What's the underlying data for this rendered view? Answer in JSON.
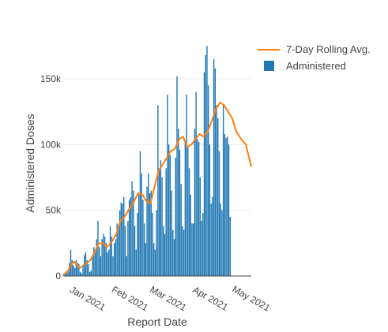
{
  "chart_data": {
    "type": "bar",
    "title": "",
    "xlabel": "Report Date",
    "ylabel": "Administered Doses",
    "x_start": "2020-12-14",
    "x_end": "2021-05-01",
    "ylim": [
      0,
      180000
    ],
    "y_ticks": [
      {
        "value": 0,
        "label": "0"
      },
      {
        "value": 50000,
        "label": "50k"
      },
      {
        "value": 100000,
        "label": "100k"
      },
      {
        "value": 150000,
        "label": "150k"
      }
    ],
    "x_ticks": [
      {
        "date": "2021-01-01",
        "label": "Jan 2021"
      },
      {
        "date": "2021-02-01",
        "label": "Feb 2021"
      },
      {
        "date": "2021-03-01",
        "label": "Mar 2021"
      },
      {
        "date": "2021-04-01",
        "label": "Apr 2021"
      },
      {
        "date": "2021-05-01",
        "label": "May 2021"
      }
    ],
    "grid": true,
    "legend_position": "top-right",
    "series": [
      {
        "name": "Administered",
        "kind": "bar",
        "color": "#1f77b4",
        "start_date": "2020-12-14",
        "values": [
          1500,
          2000,
          4000,
          3000,
          10000,
          20000,
          12000,
          8000,
          6000,
          12000,
          10000,
          9000,
          3000,
          2000,
          8000,
          16000,
          18000,
          12000,
          9000,
          3000,
          4000,
          14000,
          22000,
          18000,
          28000,
          42000,
          22000,
          15000,
          28000,
          32000,
          30000,
          25000,
          18000,
          20000,
          38000,
          30000,
          15000,
          25000,
          28000,
          40000,
          36000,
          50000,
          56000,
          55000,
          60000,
          38000,
          15000,
          42000,
          58000,
          60000,
          72000,
          65000,
          38000,
          20000,
          48000,
          62000,
          95000,
          78000,
          58000,
          40000,
          25000,
          68000,
          78000,
          63000,
          65000,
          48000,
          25000,
          20000,
          50000,
          130000,
          82000,
          88000,
          75000,
          38000,
          32000,
          82000,
          138000,
          100000,
          92000,
          65000,
          35000,
          28000,
          90000,
          152000,
          112000,
          96000,
          70000,
          38000,
          35000,
          102000,
          138000,
          98000,
          82000,
          62000,
          40000,
          40000,
          112000,
          140000,
          104000,
          102000,
          75000,
          42000,
          48000,
          155000,
          168000,
          175000,
          145000,
          100000,
          55000,
          60000,
          165000,
          158000,
          130000,
          120000,
          95000,
          55000,
          50000,
          130000,
          108000,
          105000,
          106000,
          100000,
          45000
        ],
        "description_of_scale": "daily doses"
      },
      {
        "name": "7-Day Rolling Avg.",
        "kind": "line",
        "color": "#ff7f0e",
        "points": [
          [
            "2020-12-14",
            1000
          ],
          [
            "2020-12-17",
            3000
          ],
          [
            "2020-12-20",
            9000
          ],
          [
            "2020-12-22",
            11000
          ],
          [
            "2020-12-26",
            6000
          ],
          [
            "2020-12-30",
            9000
          ],
          [
            "2021-01-03",
            12000
          ],
          [
            "2021-01-06",
            18000
          ],
          [
            "2021-01-09",
            25000
          ],
          [
            "2021-01-12",
            25000
          ],
          [
            "2021-01-15",
            22000
          ],
          [
            "2021-01-18",
            25000
          ],
          [
            "2021-01-22",
            32000
          ],
          [
            "2021-01-25",
            42000
          ],
          [
            "2021-01-28",
            45000
          ],
          [
            "2021-02-01",
            52000
          ],
          [
            "2021-02-04",
            57000
          ],
          [
            "2021-02-07",
            63000
          ],
          [
            "2021-02-10",
            62000
          ],
          [
            "2021-02-13",
            57000
          ],
          [
            "2021-02-16",
            55000
          ],
          [
            "2021-02-19",
            68000
          ],
          [
            "2021-02-22",
            80000
          ],
          [
            "2021-02-25",
            85000
          ],
          [
            "2021-02-28",
            90000
          ],
          [
            "2021-03-03",
            95000
          ],
          [
            "2021-03-06",
            97000
          ],
          [
            "2021-03-09",
            104000
          ],
          [
            "2021-03-12",
            106000
          ],
          [
            "2021-03-15",
            98000
          ],
          [
            "2021-03-18",
            100000
          ],
          [
            "2021-03-21",
            104000
          ],
          [
            "2021-03-24",
            108000
          ],
          [
            "2021-03-27",
            106000
          ],
          [
            "2021-03-30",
            110000
          ],
          [
            "2021-04-02",
            118000
          ],
          [
            "2021-04-05",
            127000
          ],
          [
            "2021-04-08",
            132000
          ],
          [
            "2021-04-11",
            130000
          ],
          [
            "2021-04-14",
            125000
          ],
          [
            "2021-04-17",
            120000
          ],
          [
            "2021-04-20",
            110000
          ],
          [
            "2021-04-23",
            105000
          ],
          [
            "2021-04-27",
            100000
          ],
          [
            "2021-05-01",
            83000
          ]
        ]
      }
    ]
  },
  "legend": {
    "line_label": "7-Day Rolling Avg.",
    "bar_label": "Administered"
  }
}
